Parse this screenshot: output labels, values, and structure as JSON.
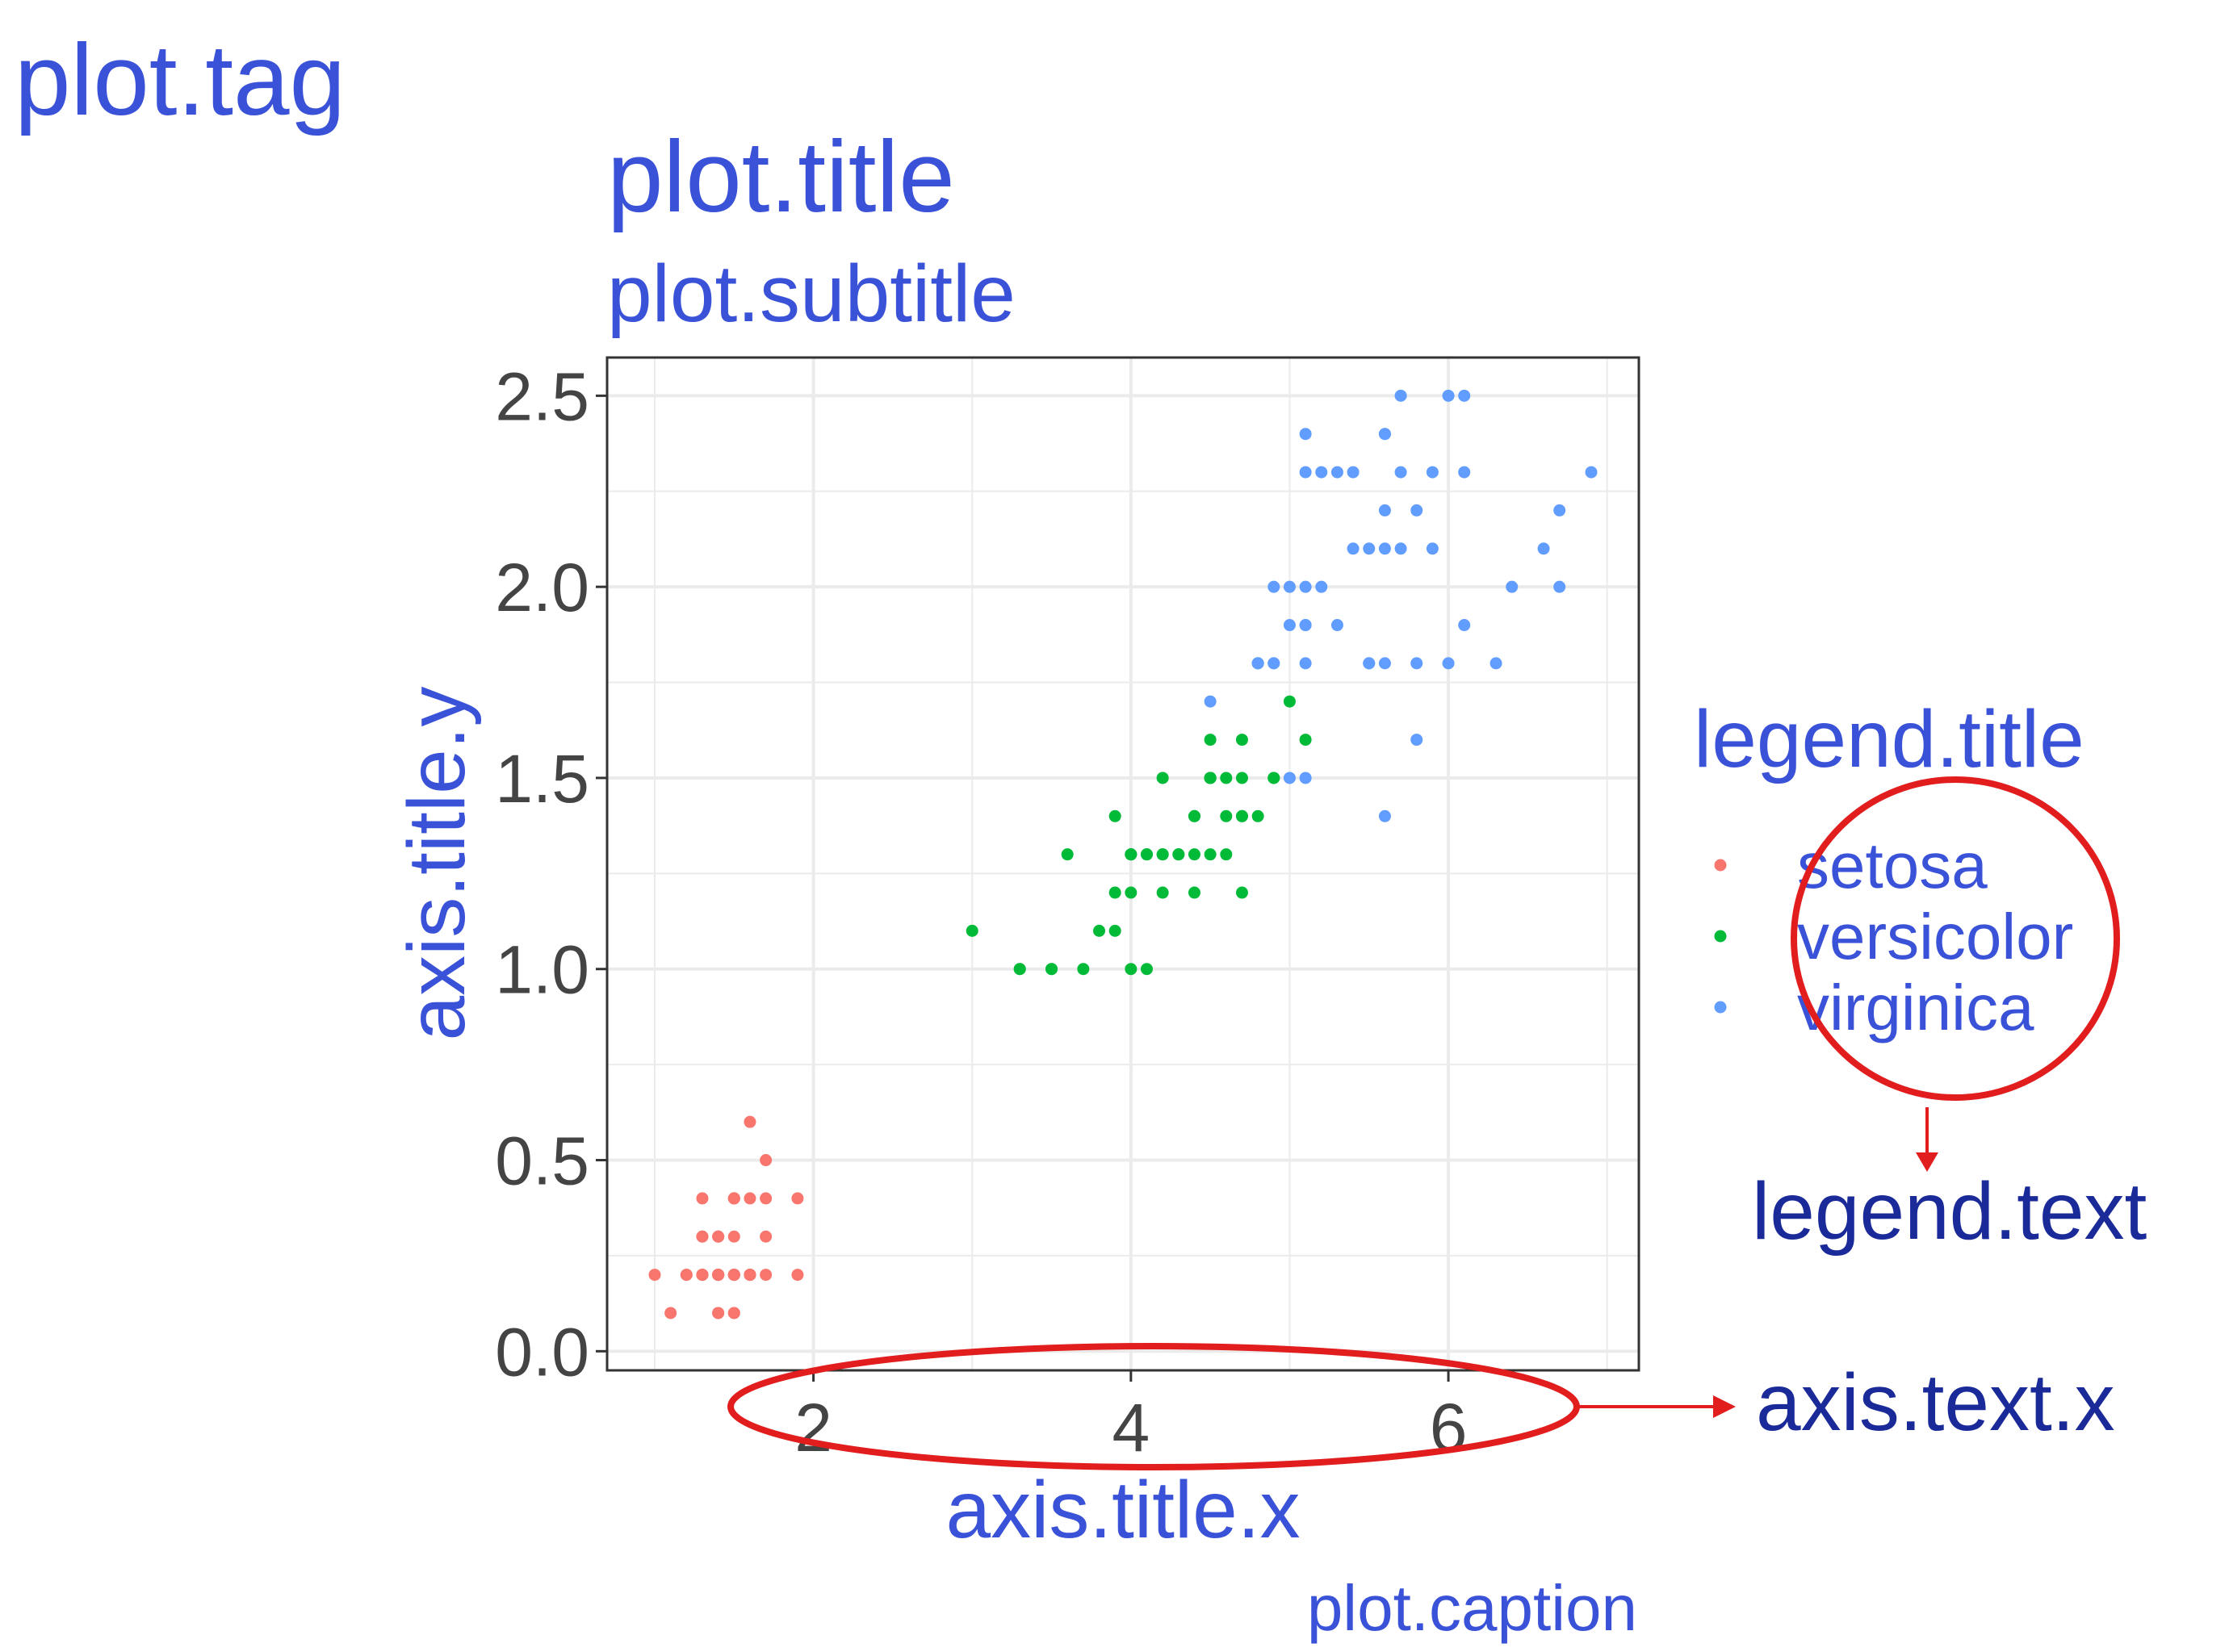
{
  "labels": {
    "tag": "plot.tag",
    "title": "plot.title",
    "subtitle": "plot.subtitle",
    "caption": "plot.caption",
    "legend_title": "legend.title",
    "annotation_legend_text": "legend.text",
    "annotation_axis_text_x": "axis.text.x"
  },
  "colors": {
    "theme_text": "#3a52d8",
    "annotation_text": "#1a2a99",
    "annotation_ring": "#e11d1d",
    "panel_border": "#333333",
    "grid": "#ebebeb"
  },
  "chart_data": {
    "type": "scatter",
    "xlabel": "axis.title.x",
    "ylabel": "axis.title.y",
    "xlim": [
      0.7,
      7.2
    ],
    "ylim": [
      -0.05,
      2.6
    ],
    "x_ticks": [
      2,
      4,
      6
    ],
    "x_tick_labels": [
      "2",
      "4",
      "6"
    ],
    "y_ticks": [
      0.0,
      0.5,
      1.0,
      1.5,
      2.0,
      2.5
    ],
    "y_tick_labels": [
      "0.0",
      "0.5",
      "1.0",
      "1.5",
      "2.0",
      "2.5"
    ],
    "grid": true,
    "legend_position": "right",
    "series": [
      {
        "name": "setosa",
        "color": "#f8766d",
        "points": [
          [
            1.4,
            0.2
          ],
          [
            1.4,
            0.2
          ],
          [
            1.3,
            0.2
          ],
          [
            1.5,
            0.2
          ],
          [
            1.4,
            0.2
          ],
          [
            1.7,
            0.4
          ],
          [
            1.4,
            0.3
          ],
          [
            1.5,
            0.2
          ],
          [
            1.4,
            0.2
          ],
          [
            1.5,
            0.1
          ],
          [
            1.5,
            0.2
          ],
          [
            1.6,
            0.2
          ],
          [
            1.4,
            0.1
          ],
          [
            1.1,
            0.1
          ],
          [
            1.2,
            0.2
          ],
          [
            1.5,
            0.4
          ],
          [
            1.3,
            0.4
          ],
          [
            1.4,
            0.3
          ],
          [
            1.7,
            0.3
          ],
          [
            1.5,
            0.3
          ],
          [
            1.7,
            0.2
          ],
          [
            1.5,
            0.4
          ],
          [
            1.0,
            0.2
          ],
          [
            1.7,
            0.5
          ],
          [
            1.9,
            0.2
          ],
          [
            1.6,
            0.2
          ],
          [
            1.6,
            0.4
          ],
          [
            1.5,
            0.2
          ],
          [
            1.4,
            0.2
          ],
          [
            1.6,
            0.2
          ],
          [
            1.6,
            0.2
          ],
          [
            1.5,
            0.4
          ],
          [
            1.5,
            0.1
          ],
          [
            1.4,
            0.2
          ],
          [
            1.5,
            0.2
          ],
          [
            1.2,
            0.2
          ],
          [
            1.3,
            0.2
          ],
          [
            1.4,
            0.1
          ],
          [
            1.3,
            0.2
          ],
          [
            1.5,
            0.2
          ],
          [
            1.3,
            0.3
          ],
          [
            1.3,
            0.3
          ],
          [
            1.3,
            0.2
          ],
          [
            1.6,
            0.6
          ],
          [
            1.9,
            0.4
          ],
          [
            1.4,
            0.3
          ],
          [
            1.6,
            0.2
          ],
          [
            1.4,
            0.2
          ],
          [
            1.5,
            0.2
          ],
          [
            1.4,
            0.2
          ]
        ]
      },
      {
        "name": "versicolor",
        "color": "#00ba38",
        "points": [
          [
            4.7,
            1.4
          ],
          [
            4.5,
            1.5
          ],
          [
            4.9,
            1.5
          ],
          [
            4.0,
            1.3
          ],
          [
            4.6,
            1.5
          ],
          [
            4.5,
            1.3
          ],
          [
            4.7,
            1.6
          ],
          [
            3.3,
            1.0
          ],
          [
            4.6,
            1.3
          ],
          [
            3.9,
            1.4
          ],
          [
            3.5,
            1.0
          ],
          [
            4.2,
            1.5
          ],
          [
            4.0,
            1.0
          ],
          [
            4.7,
            1.4
          ],
          [
            3.6,
            1.3
          ],
          [
            4.4,
            1.4
          ],
          [
            4.5,
            1.5
          ],
          [
            4.1,
            1.0
          ],
          [
            4.5,
            1.5
          ],
          [
            3.9,
            1.1
          ],
          [
            4.8,
            1.8
          ],
          [
            4.0,
            1.3
          ],
          [
            4.9,
            1.5
          ],
          [
            4.7,
            1.2
          ],
          [
            4.3,
            1.3
          ],
          [
            4.4,
            1.4
          ],
          [
            4.8,
            1.4
          ],
          [
            5.0,
            1.7
          ],
          [
            4.5,
            1.5
          ],
          [
            3.5,
            1.0
          ],
          [
            3.8,
            1.1
          ],
          [
            3.7,
            1.0
          ],
          [
            3.9,
            1.2
          ],
          [
            5.1,
            1.6
          ],
          [
            4.5,
            1.5
          ],
          [
            4.5,
            1.6
          ],
          [
            4.7,
            1.5
          ],
          [
            4.4,
            1.3
          ],
          [
            4.1,
            1.3
          ],
          [
            4.0,
            1.3
          ],
          [
            4.4,
            1.2
          ],
          [
            4.6,
            1.4
          ],
          [
            4.0,
            1.2
          ],
          [
            3.3,
            1.0
          ],
          [
            4.2,
            1.3
          ],
          [
            4.2,
            1.2
          ],
          [
            4.2,
            1.3
          ],
          [
            4.3,
            1.3
          ],
          [
            3.0,
            1.1
          ],
          [
            4.1,
            1.3
          ]
        ]
      },
      {
        "name": "virginica",
        "color": "#619cff",
        "points": [
          [
            6.0,
            2.5
          ],
          [
            5.1,
            1.9
          ],
          [
            5.9,
            2.1
          ],
          [
            5.6,
            1.8
          ],
          [
            5.8,
            2.2
          ],
          [
            6.6,
            2.1
          ],
          [
            4.5,
            1.7
          ],
          [
            6.3,
            1.8
          ],
          [
            5.8,
            1.8
          ],
          [
            6.1,
            2.5
          ],
          [
            5.1,
            2.0
          ],
          [
            5.3,
            1.9
          ],
          [
            5.5,
            2.1
          ],
          [
            5.0,
            2.0
          ],
          [
            5.1,
            2.4
          ],
          [
            5.3,
            2.3
          ],
          [
            5.5,
            1.8
          ],
          [
            6.7,
            2.2
          ],
          [
            6.9,
            2.3
          ],
          [
            5.0,
            1.5
          ],
          [
            5.7,
            2.3
          ],
          [
            4.9,
            2.0
          ],
          [
            6.7,
            2.0
          ],
          [
            4.9,
            1.8
          ],
          [
            5.7,
            2.1
          ],
          [
            6.0,
            1.8
          ],
          [
            4.8,
            1.8
          ],
          [
            4.9,
            1.8
          ],
          [
            5.6,
            2.1
          ],
          [
            5.8,
            1.6
          ],
          [
            6.1,
            1.9
          ],
          [
            6.4,
            2.0
          ],
          [
            5.6,
            2.2
          ],
          [
            5.1,
            1.5
          ],
          [
            5.6,
            1.4
          ],
          [
            6.1,
            2.3
          ],
          [
            5.6,
            2.4
          ],
          [
            5.5,
            1.8
          ],
          [
            4.8,
            1.8
          ],
          [
            5.4,
            2.1
          ],
          [
            5.6,
            2.4
          ],
          [
            5.1,
            2.3
          ],
          [
            5.1,
            1.9
          ],
          [
            5.9,
            2.3
          ],
          [
            5.7,
            2.5
          ],
          [
            5.2,
            2.3
          ],
          [
            5.0,
            1.9
          ],
          [
            5.2,
            2.0
          ],
          [
            5.4,
            2.3
          ],
          [
            5.1,
            1.8
          ]
        ]
      }
    ]
  }
}
